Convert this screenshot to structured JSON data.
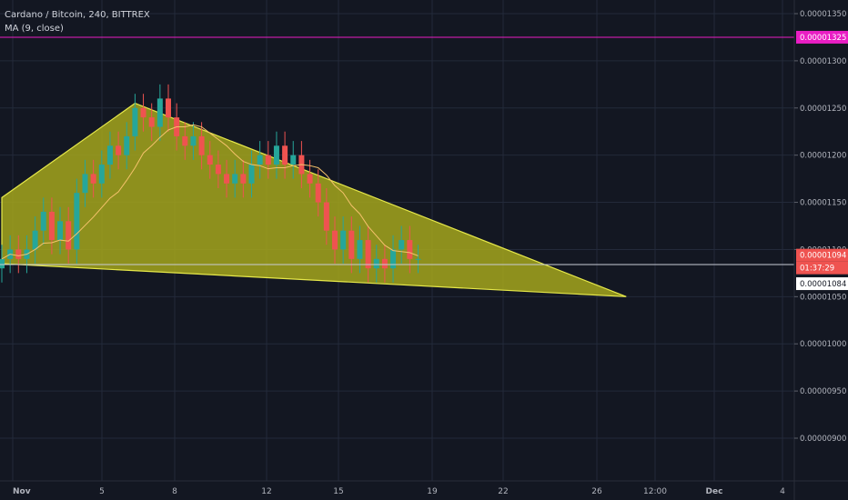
{
  "header": {
    "title": "Cardano / Bitcoin, 240, BITTREX",
    "indicator": "MA (9, close)"
  },
  "colors": {
    "background": "#131722",
    "grid": "#232a3a",
    "up": "#26a69a",
    "down": "#ef5350",
    "ma": "#f5c26b",
    "triangle_fill": "#a4a61c",
    "triangle_stroke": "#e6e84a",
    "resistance": "#e91ec4",
    "price_badge": "#ef5350",
    "current_line": "#c8ccd6"
  },
  "chart_data": {
    "type": "candlestick",
    "x_labels": [
      "Nov",
      "5",
      "8",
      "12",
      "15",
      "19",
      "22",
      "26",
      "12:00",
      "Dec",
      "4"
    ],
    "y_ticks": [
      "0.00001350",
      "0.00001300",
      "0.00001250",
      "0.00001200",
      "0.00001150",
      "0.00001100",
      "0.00001050",
      "0.00001000",
      "0.00000950",
      "0.00000900"
    ],
    "ylim": [
      8.7e-06,
      1.36e-05
    ],
    "closes": [
      1.09e-05,
      1.1e-05,
      1.09e-05,
      1.1e-05,
      1.12e-05,
      1.14e-05,
      1.11e-05,
      1.13e-05,
      1.1e-05,
      1.16e-05,
      1.18e-05,
      1.17e-05,
      1.19e-05,
      1.21e-05,
      1.2e-05,
      1.22e-05,
      1.25e-05,
      1.24e-05,
      1.23e-05,
      1.26e-05,
      1.24e-05,
      1.22e-05,
      1.21e-05,
      1.22e-05,
      1.2e-05,
      1.19e-05,
      1.18e-05,
      1.17e-05,
      1.18e-05,
      1.17e-05,
      1.19e-05,
      1.2e-05,
      1.19e-05,
      1.21e-05,
      1.19e-05,
      1.2e-05,
      1.18e-05,
      1.17e-05,
      1.15e-05,
      1.12e-05,
      1.1e-05,
      1.12e-05,
      1.09e-05,
      1.11e-05,
      1.08e-05,
      1.09e-05,
      1.08e-05,
      1.1e-05,
      1.11e-05,
      1.09e-05,
      1.09e-05
    ],
    "ma_period": 9,
    "resistance": {
      "value": 1.325e-05,
      "label": "0.00001325"
    },
    "last_price": {
      "value": 1.094e-05,
      "label": "0.00001094",
      "countdown": "01:37:29"
    },
    "current_level": {
      "value": 1.084e-05,
      "label": "0.00001084"
    },
    "triangle": {
      "apex": [
        16,
        1.255e-05
      ],
      "left": [
        0,
        1.155e-05
      ],
      "bottom_left": [
        0,
        1.085e-05
      ],
      "right": [
        75,
        1.05e-05
      ]
    }
  }
}
